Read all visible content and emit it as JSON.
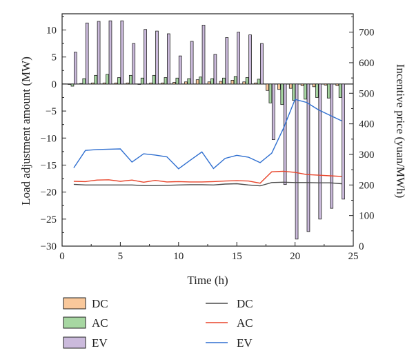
{
  "chart_data": {
    "type": "bar+line",
    "title": "",
    "xlabel": "Time (h)",
    "ylabel_left": "Load adjustment amount (MW)",
    "ylabel_right": "Incentive price (yuan/MWh)",
    "xlim": [
      0,
      25
    ],
    "ylim_left": [
      -30,
      13
    ],
    "ylim_right": [
      0,
      760
    ],
    "x_ticks": [
      "0",
      "5",
      "10",
      "15",
      "20",
      "25"
    ],
    "y_ticks_left": [
      "−30",
      "−25",
      "−20",
      "−15",
      "−10",
      "−5",
      "0",
      "5",
      "10"
    ],
    "y_ticks_right": [
      "0",
      "100",
      "200",
      "300",
      "400",
      "500",
      "600",
      "700"
    ],
    "grid": false,
    "legend_position": "bottom",
    "x": [
      1,
      2,
      3,
      4,
      5,
      6,
      7,
      8,
      9,
      10,
      11,
      12,
      13,
      14,
      15,
      16,
      17,
      18,
      19,
      20,
      21,
      22,
      23,
      24
    ],
    "bar_series": [
      {
        "name": "DC",
        "color": "#f9c89b",
        "values": [
          0,
          0.1,
          0.2,
          0.2,
          0.2,
          0.2,
          0,
          0.2,
          0.2,
          0.3,
          0.4,
          0.8,
          0.4,
          0.5,
          0.7,
          0.4,
          0.2,
          -1.2,
          -1.0,
          -0.8,
          -0.3,
          -0.5,
          -0.2,
          -0.3
        ]
      },
      {
        "name": "AC",
        "color": "#a7d7a2",
        "values": [
          -0.4,
          1.0,
          1.6,
          1.8,
          1.2,
          1.6,
          1.1,
          1.6,
          1.2,
          1.1,
          1.0,
          1.3,
          1.0,
          1.1,
          1.4,
          1.2,
          0.9,
          -3.5,
          -3.8,
          -3.0,
          -2.8,
          -2.5,
          -2.6,
          -2.5
        ]
      },
      {
        "name": "EV",
        "color": "#cbbadc",
        "values": [
          5.9,
          11.3,
          11.6,
          11.7,
          11.7,
          7.5,
          10.1,
          9.8,
          9.3,
          5.2,
          7.9,
          10.9,
          5.5,
          8.6,
          9.6,
          9.1,
          7.5,
          -10.3,
          -18.6,
          -28.7,
          -27.3,
          -25.0,
          -23.0,
          -21.3
        ]
      }
    ],
    "line_series": [
      {
        "name": "DC",
        "color": "#4a4a4a",
        "values": [
          202,
          200,
          200,
          200,
          200,
          200,
          198,
          198,
          199,
          200,
          201,
          201,
          200,
          203,
          204,
          200,
          197,
          208,
          209,
          208,
          208,
          207,
          207,
          204
        ]
      },
      {
        "name": "AC",
        "color": "#e8442a",
        "values": [
          212,
          211,
          216,
          217,
          212,
          216,
          209,
          215,
          210,
          211,
          210,
          210,
          211,
          213,
          214,
          213,
          206,
          243,
          245,
          241,
          234,
          232,
          230,
          228
        ]
      },
      {
        "name": "EV",
        "color": "#2f6fd0",
        "values": [
          256,
          313,
          316,
          317,
          318,
          275,
          302,
          298,
          292,
          253,
          281,
          308,
          254,
          287,
          297,
          291,
          273,
          304,
          385,
          480,
          470,
          446,
          428,
          410
        ]
      }
    ]
  }
}
